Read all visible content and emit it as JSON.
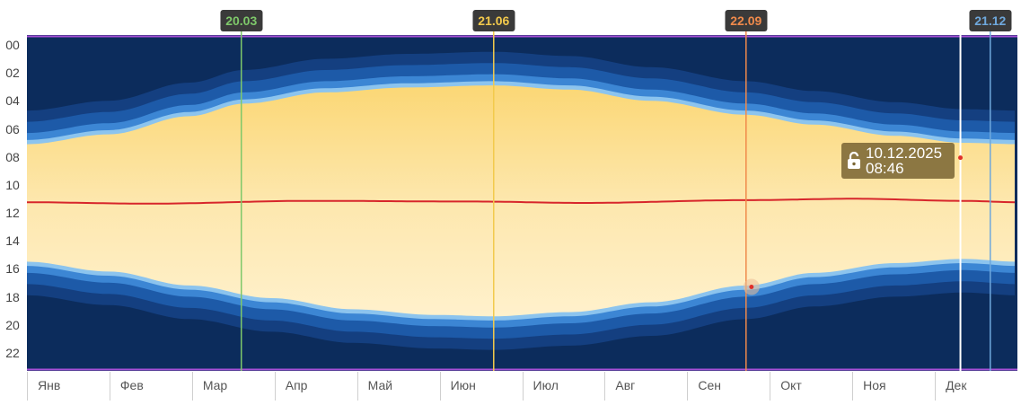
{
  "chart_data": {
    "type": "area",
    "title": "",
    "year_days": 365,
    "y_ticks": [
      "00",
      "02",
      "04",
      "06",
      "08",
      "10",
      "12",
      "14",
      "16",
      "18",
      "20",
      "22"
    ],
    "ylim": [
      0,
      24
    ],
    "months": [
      "Янв",
      "Фев",
      "Мар",
      "Апр",
      "Май",
      "Июн",
      "Июл",
      "Авг",
      "Сен",
      "Окт",
      "Ноя",
      "Дек"
    ],
    "sunrise_hour": [
      [
        0,
        7.8
      ],
      [
        30,
        7.1
      ],
      [
        60,
        5.8
      ],
      [
        80,
        4.9
      ],
      [
        110,
        4.1
      ],
      [
        140,
        3.75
      ],
      [
        172,
        3.6
      ],
      [
        200,
        3.9
      ],
      [
        230,
        4.7
      ],
      [
        265,
        5.7
      ],
      [
        290,
        6.4
      ],
      [
        320,
        7.2
      ],
      [
        345,
        7.7
      ],
      [
        365,
        7.8
      ]
    ],
    "sunset_hour": [
      [
        0,
        16.2
      ],
      [
        30,
        16.9
      ],
      [
        60,
        17.9
      ],
      [
        90,
        18.8
      ],
      [
        120,
        19.6
      ],
      [
        150,
        20.0
      ],
      [
        172,
        20.1
      ],
      [
        200,
        19.8
      ],
      [
        230,
        19.1
      ],
      [
        265,
        17.9
      ],
      [
        290,
        17.0
      ],
      [
        320,
        16.3
      ],
      [
        345,
        16.0
      ],
      [
        365,
        16.2
      ]
    ],
    "solar_noon_hour": [
      [
        0,
        11.95
      ],
      [
        45,
        12.05
      ],
      [
        105,
        11.85
      ],
      [
        165,
        11.9
      ],
      [
        205,
        12.0
      ],
      [
        265,
        11.8
      ],
      [
        305,
        11.7
      ],
      [
        345,
        11.85
      ],
      [
        365,
        11.95
      ]
    ],
    "markers": [
      {
        "label": "20.03",
        "day": 79,
        "color": "#7ec86a"
      },
      {
        "label": "21.06",
        "day": 172,
        "color": "#f2c94c"
      },
      {
        "label": "22.09",
        "day": 265,
        "color": "#f08a4b"
      },
      {
        "label": "21.12",
        "day": 355,
        "color": "#6fa8dc"
      }
    ],
    "current": {
      "day": 344,
      "hour": 8.77,
      "date": "10.12.2025",
      "time": "08:46"
    },
    "point": {
      "day": 267,
      "hour": 18.0
    }
  }
}
